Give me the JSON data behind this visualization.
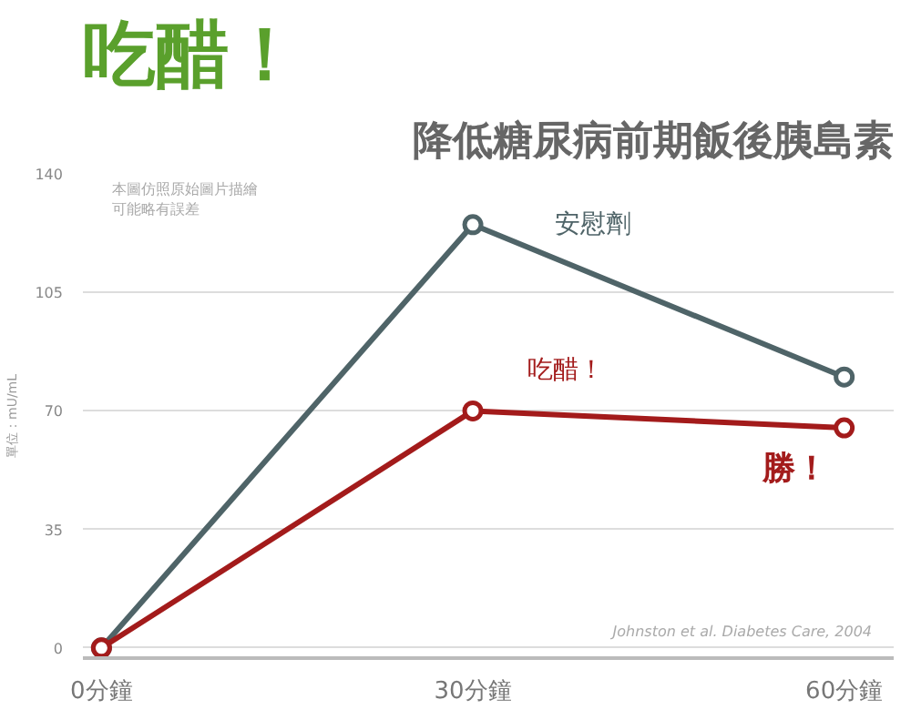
{
  "chart_data": {
    "type": "line",
    "title": "吃醋！",
    "subtitle": "降低糖尿病前期飯後胰島素",
    "ylabel": "單位：mU/mL",
    "x": [
      0,
      30,
      60
    ],
    "xlim": [
      -1.5,
      64
    ],
    "xticks": [
      {
        "value": 0,
        "label": "0分鐘"
      },
      {
        "value": 30,
        "label": "30分鐘"
      },
      {
        "value": 60,
        "label": "60分鐘"
      }
    ],
    "ylim": [
      -3,
      140
    ],
    "yticks": [
      0,
      35,
      70,
      105,
      140
    ],
    "grid": "y",
    "marker": "circle",
    "line_style": "solid",
    "series": [
      {
        "name": "安慰劑",
        "color": "#4f6468",
        "values": [
          0,
          125,
          80
        ]
      },
      {
        "name": "吃醋！",
        "color": "#a31b1b",
        "values": [
          0,
          70,
          65
        ]
      }
    ],
    "annotations": [
      "本圖仿照原始圖片描繪",
      "可能略有誤差",
      "Johnston et al. Diabetes Care, 2004",
      {
        "text": "勝！",
        "x": 60,
        "y": 65
      }
    ]
  }
}
